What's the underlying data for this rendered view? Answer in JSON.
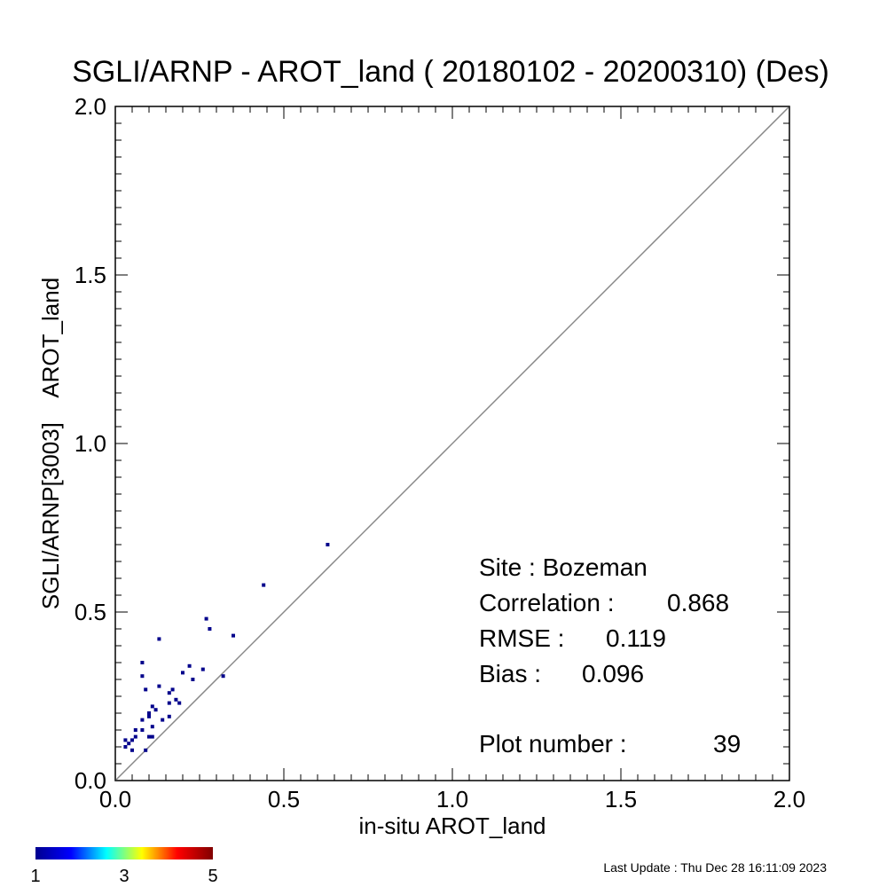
{
  "chart_data": {
    "type": "scatter",
    "title": "SGLI/ARNP - AROT_land ( 20180102 - 20200310) (Des)",
    "xlabel": "in-situ AROT_land",
    "ylabel": "SGLI/ARNP[3003]    AROT_land",
    "xlim": [
      0.0,
      2.0
    ],
    "ylim": [
      0.0,
      2.0
    ],
    "xticks": [
      "0.0",
      "0.5",
      "1.0",
      "1.5",
      "2.0"
    ],
    "yticks": [
      "0.0",
      "0.5",
      "1.0",
      "1.5",
      "2.0"
    ],
    "one_to_one_line": true,
    "grid": false,
    "points": [
      {
        "x": 0.63,
        "y": 0.7
      },
      {
        "x": 0.44,
        "y": 0.58
      },
      {
        "x": 0.27,
        "y": 0.48
      },
      {
        "x": 0.28,
        "y": 0.45
      },
      {
        "x": 0.35,
        "y": 0.43
      },
      {
        "x": 0.13,
        "y": 0.42
      },
      {
        "x": 0.08,
        "y": 0.35
      },
      {
        "x": 0.22,
        "y": 0.34
      },
      {
        "x": 0.26,
        "y": 0.33
      },
      {
        "x": 0.2,
        "y": 0.32
      },
      {
        "x": 0.32,
        "y": 0.31
      },
      {
        "x": 0.08,
        "y": 0.31
      },
      {
        "x": 0.23,
        "y": 0.3
      },
      {
        "x": 0.13,
        "y": 0.28
      },
      {
        "x": 0.09,
        "y": 0.27
      },
      {
        "x": 0.17,
        "y": 0.27
      },
      {
        "x": 0.16,
        "y": 0.26
      },
      {
        "x": 0.18,
        "y": 0.24
      },
      {
        "x": 0.19,
        "y": 0.23
      },
      {
        "x": 0.16,
        "y": 0.23
      },
      {
        "x": 0.11,
        "y": 0.22
      },
      {
        "x": 0.12,
        "y": 0.21
      },
      {
        "x": 0.1,
        "y": 0.2
      },
      {
        "x": 0.1,
        "y": 0.19
      },
      {
        "x": 0.16,
        "y": 0.19
      },
      {
        "x": 0.14,
        "y": 0.18
      },
      {
        "x": 0.08,
        "y": 0.18
      },
      {
        "x": 0.11,
        "y": 0.16
      },
      {
        "x": 0.06,
        "y": 0.15
      },
      {
        "x": 0.08,
        "y": 0.15
      },
      {
        "x": 0.1,
        "y": 0.13
      },
      {
        "x": 0.11,
        "y": 0.13
      },
      {
        "x": 0.05,
        "y": 0.12
      },
      {
        "x": 0.06,
        "y": 0.13
      },
      {
        "x": 0.03,
        "y": 0.12
      },
      {
        "x": 0.04,
        "y": 0.11
      },
      {
        "x": 0.03,
        "y": 0.1
      },
      {
        "x": 0.05,
        "y": 0.09
      },
      {
        "x": 0.09,
        "y": 0.09
      }
    ],
    "point_color": "#00008b",
    "stats": {
      "site_line": "Site : Bozeman",
      "corr_label": "Correlation :",
      "corr_value": "0.868",
      "rmse_label": "RMSE :",
      "rmse_value": "0.119",
      "bias_label": "Bias :",
      "bias_value": "0.096",
      "plot_label": "Plot number :",
      "plot_value": "39"
    },
    "colorbar": {
      "min_label": "1",
      "mid_label": "3",
      "max_label": "5",
      "colors": [
        "#00008f",
        "#0000ff",
        "#00ffff",
        "#ffff00",
        "#ff0000",
        "#800000"
      ]
    }
  },
  "footer": {
    "last_update": "Last Update : Thu Dec 28 16:11:09 2023"
  }
}
